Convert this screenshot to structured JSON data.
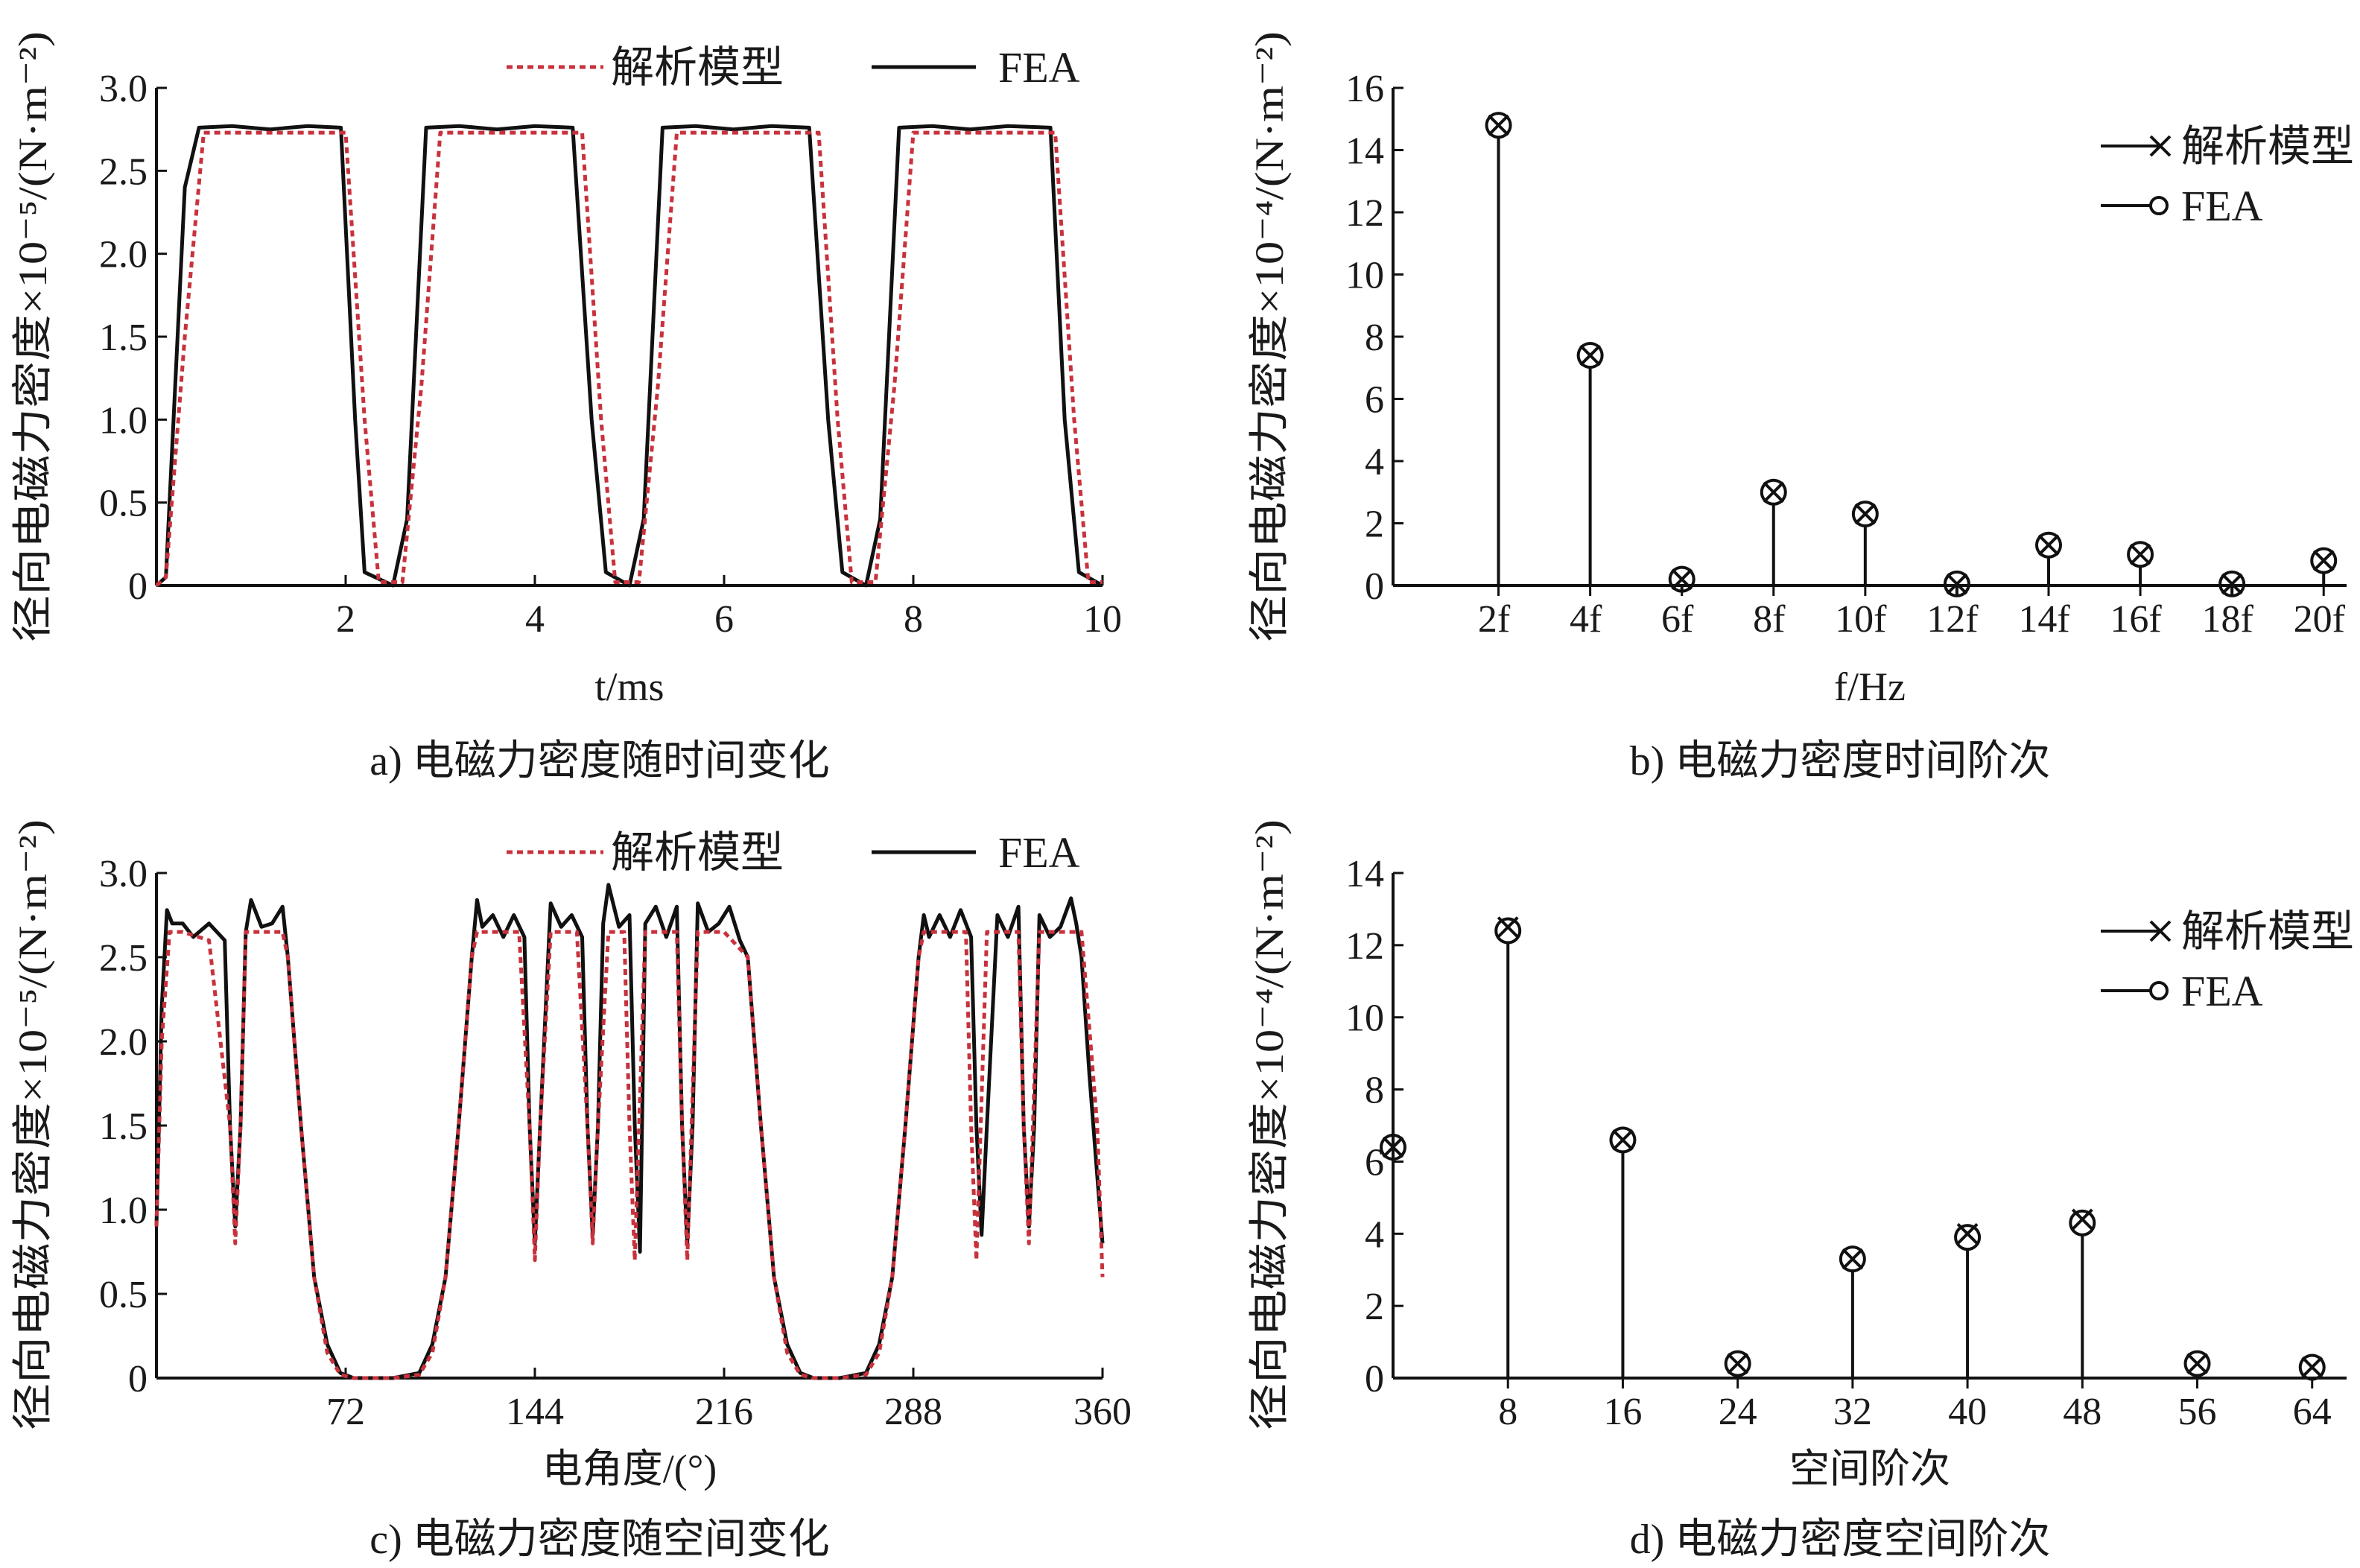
{
  "colors": {
    "analytic": "#c8323c",
    "fea": "#111111",
    "axis": "#111111",
    "background": "#ffffff"
  },
  "chart_data": [
    {
      "id": "a",
      "type": "line",
      "caption": "a) 电磁力密度随时间变化",
      "xlabel": "t/ms",
      "ylabel": "径向电磁力密度×10⁻⁵/(N·m⁻²)",
      "xlim": [
        0,
        10
      ],
      "ylim": [
        0,
        3.0
      ],
      "xticks": [
        "2",
        "4",
        "6",
        "8",
        "10"
      ],
      "xtick_values": [
        2,
        4,
        6,
        8,
        10
      ],
      "yticks": [
        "0",
        "0.5",
        "1.0",
        "1.5",
        "2.0",
        "2.5",
        "3.0"
      ],
      "ytick_values": [
        0,
        0.5,
        1.0,
        1.5,
        2.0,
        2.5,
        3.0
      ],
      "legend_position": "top",
      "series": [
        {
          "name": "解析模型",
          "style": "dotted",
          "color": "#c8323c",
          "x": [
            0.0,
            0.1,
            0.3,
            0.5,
            2.0,
            2.2,
            2.35,
            2.6,
            2.8,
            3.0,
            4.5,
            4.7,
            4.85,
            5.1,
            5.3,
            5.5,
            7.0,
            7.2,
            7.35,
            7.6,
            7.8,
            8.0,
            9.5,
            9.7,
            9.85,
            10.0
          ],
          "y": [
            0.0,
            0.05,
            1.5,
            2.73,
            2.73,
            1.0,
            0.02,
            0.02,
            1.2,
            2.73,
            2.73,
            1.0,
            0.02,
            0.02,
            1.2,
            2.73,
            2.73,
            1.0,
            0.02,
            0.02,
            1.2,
            2.73,
            2.73,
            1.0,
            0.02,
            0.02
          ]
        },
        {
          "name": "FEA",
          "style": "solid",
          "color": "#111111",
          "x": [
            0.0,
            0.1,
            0.3,
            0.45,
            0.8,
            1.2,
            1.6,
            1.95,
            2.1,
            2.2,
            2.5,
            2.65,
            2.85,
            3.2,
            3.6,
            4.0,
            4.4,
            4.6,
            4.75,
            5.0,
            5.15,
            5.35,
            5.7,
            6.1,
            6.5,
            6.9,
            7.1,
            7.25,
            7.5,
            7.65,
            7.85,
            8.2,
            8.6,
            9.0,
            9.45,
            9.6,
            9.75,
            10.0
          ],
          "y": [
            0.0,
            0.05,
            2.4,
            2.76,
            2.77,
            2.75,
            2.77,
            2.76,
            1.0,
            0.08,
            0.0,
            0.4,
            2.76,
            2.77,
            2.75,
            2.77,
            2.76,
            1.0,
            0.08,
            0.0,
            0.4,
            2.76,
            2.77,
            2.75,
            2.77,
            2.76,
            1.0,
            0.08,
            0.0,
            0.4,
            2.76,
            2.77,
            2.75,
            2.77,
            2.76,
            1.0,
            0.08,
            0.0
          ]
        }
      ]
    },
    {
      "id": "b",
      "type": "bar",
      "caption": "b) 电磁力密度时间阶次",
      "xlabel": "f/Hz",
      "ylabel": "径向电磁力密度×10⁻⁴/(N·m⁻²)",
      "ylim": [
        0,
        16
      ],
      "categories": [
        "2f",
        "4f",
        "6f",
        "8f",
        "10f",
        "12f",
        "14f",
        "16f",
        "18f",
        "20f"
      ],
      "yticks": [
        "0",
        "2",
        "4",
        "6",
        "8",
        "10",
        "12",
        "14",
        "16"
      ],
      "ytick_values": [
        0,
        2,
        4,
        6,
        8,
        10,
        12,
        14,
        16
      ],
      "legend_position": "top-right",
      "series": [
        {
          "name": "解析模型",
          "marker": "x",
          "values": [
            14.8,
            7.4,
            0.2,
            3.0,
            2.3,
            0.05,
            1.3,
            1.0,
            0.05,
            0.8
          ]
        },
        {
          "name": "FEA",
          "marker": "o",
          "values": [
            14.8,
            7.4,
            0.2,
            3.0,
            2.3,
            0.05,
            1.3,
            1.0,
            0.05,
            0.8
          ]
        }
      ]
    },
    {
      "id": "c",
      "type": "line",
      "caption": "c) 电磁力密度随空间变化",
      "xlabel": "电角度/(°)",
      "ylabel": "径向电磁力密度×10⁻⁵/(N·m⁻²)",
      "xlim": [
        0,
        360
      ],
      "ylim": [
        0,
        3.0
      ],
      "xticks": [
        "72",
        "144",
        "216",
        "288",
        "360"
      ],
      "xtick_values": [
        72,
        144,
        216,
        288,
        360
      ],
      "yticks": [
        "0",
        "0.5",
        "1.0",
        "1.5",
        "2.0",
        "2.5",
        "3.0"
      ],
      "ytick_values": [
        0,
        0.5,
        1.0,
        1.5,
        2.0,
        2.5,
        3.0
      ],
      "legend_position": "top",
      "series": [
        {
          "name": "解析模型",
          "style": "dotted",
          "color": "#c8323c",
          "x": [
            0,
            2,
            5,
            10,
            20,
            28,
            30,
            32,
            34,
            38,
            42,
            48,
            50,
            55,
            60,
            65,
            70,
            75,
            80,
            90,
            100,
            105,
            110,
            115,
            120,
            122,
            126,
            130,
            138,
            142,
            144,
            146,
            150,
            160,
            164,
            166,
            168,
            172,
            178,
            180,
            182,
            186,
            198,
            200,
            202,
            206,
            216,
            225,
            230,
            235,
            240,
            245,
            250,
            260,
            270,
            275,
            280,
            285,
            290,
            292,
            296,
            300,
            308,
            310,
            312,
            316,
            328,
            330,
            332,
            336,
            348,
            352,
            358,
            360
          ],
          "y": [
            0.9,
            2.0,
            2.65,
            2.65,
            2.6,
            1.5,
            0.8,
            1.5,
            2.65,
            2.65,
            2.65,
            2.65,
            2.5,
            1.5,
            0.6,
            0.15,
            0.02,
            0.0,
            0.0,
            0.0,
            0.02,
            0.15,
            0.6,
            1.5,
            2.5,
            2.65,
            2.65,
            2.65,
            2.65,
            1.5,
            0.7,
            1.5,
            2.65,
            2.65,
            1.5,
            0.8,
            1.5,
            2.65,
            2.65,
            1.5,
            0.7,
            2.65,
            2.65,
            1.5,
            0.7,
            2.65,
            2.65,
            2.5,
            1.5,
            0.6,
            0.15,
            0.02,
            0.0,
            0.0,
            0.02,
            0.15,
            0.6,
            1.5,
            2.5,
            2.65,
            2.65,
            2.65,
            2.65,
            1.5,
            0.7,
            2.65,
            2.65,
            1.5,
            0.8,
            2.65,
            2.65,
            2.65,
            1.5,
            0.6
          ]
        },
        {
          "name": "FEA",
          "style": "solid",
          "color": "#111111",
          "x": [
            0,
            2,
            4,
            6,
            10,
            14,
            20,
            26,
            28,
            30,
            32,
            34,
            36,
            40,
            44,
            48,
            50,
            55,
            60,
            65,
            70,
            75,
            80,
            90,
            100,
            105,
            110,
            115,
            120,
            122,
            124,
            128,
            132,
            136,
            140,
            142,
            144,
            146,
            150,
            154,
            158,
            162,
            164,
            166,
            168,
            170,
            172,
            176,
            180,
            182,
            184,
            186,
            190,
            194,
            198,
            200,
            202,
            204,
            206,
            210,
            214,
            218,
            222,
            225,
            230,
            235,
            240,
            245,
            250,
            260,
            270,
            275,
            280,
            285,
            290,
            292,
            294,
            298,
            302,
            306,
            310,
            312,
            314,
            316,
            320,
            324,
            328,
            330,
            332,
            334,
            336,
            340,
            344,
            348,
            350,
            352,
            355,
            358,
            360
          ],
          "y": [
            0.9,
            2.2,
            2.78,
            2.7,
            2.7,
            2.62,
            2.7,
            2.6,
            1.5,
            0.9,
            1.5,
            2.65,
            2.84,
            2.68,
            2.7,
            2.8,
            2.5,
            1.5,
            0.6,
            0.2,
            0.03,
            0.0,
            0.0,
            0.0,
            0.03,
            0.2,
            0.6,
            1.5,
            2.5,
            2.84,
            2.68,
            2.75,
            2.62,
            2.75,
            2.62,
            1.5,
            0.8,
            1.5,
            2.82,
            2.68,
            2.75,
            2.62,
            1.5,
            0.85,
            1.5,
            2.7,
            2.93,
            2.68,
            2.75,
            1.5,
            0.75,
            2.7,
            2.8,
            2.62,
            2.8,
            1.5,
            0.8,
            1.5,
            2.82,
            2.65,
            2.7,
            2.8,
            2.6,
            2.5,
            1.5,
            0.6,
            0.2,
            0.03,
            0.0,
            0.0,
            0.03,
            0.2,
            0.6,
            1.5,
            2.5,
            2.75,
            2.62,
            2.75,
            2.62,
            2.78,
            2.62,
            1.5,
            0.85,
            1.5,
            2.75,
            2.62,
            2.8,
            1.5,
            0.9,
            1.5,
            2.75,
            2.62,
            2.68,
            2.85,
            2.7,
            2.5,
            1.8,
            1.2,
            0.8
          ]
        }
      ]
    },
    {
      "id": "d",
      "type": "bar",
      "caption": "d) 电磁力密度空间阶次",
      "xlabel": "空间阶次",
      "ylabel": "径向电磁力密度×10⁻⁴/(N·m⁻²)",
      "ylim": [
        0,
        14
      ],
      "categories": [
        "0",
        "8",
        "16",
        "24",
        "32",
        "40",
        "48",
        "56",
        "64"
      ],
      "category_values": [
        0,
        8,
        16,
        24,
        32,
        40,
        48,
        56,
        64
      ],
      "xticks": [
        "8",
        "16",
        "24",
        "32",
        "40",
        "48",
        "56",
        "64"
      ],
      "yticks": [
        "0",
        "2",
        "4",
        "6",
        "8",
        "10",
        "12",
        "14"
      ],
      "ytick_values": [
        0,
        2,
        4,
        6,
        8,
        10,
        12,
        14
      ],
      "legend_position": "top-right",
      "series": [
        {
          "name": "解析模型",
          "marker": "x",
          "values": [
            6.4,
            12.5,
            6.6,
            0.4,
            3.3,
            4.0,
            4.4,
            0.4,
            0.3
          ]
        },
        {
          "name": "FEA",
          "marker": "o",
          "values": [
            6.4,
            12.4,
            6.6,
            0.4,
            3.3,
            3.9,
            4.3,
            0.4,
            0.3
          ]
        }
      ]
    }
  ]
}
